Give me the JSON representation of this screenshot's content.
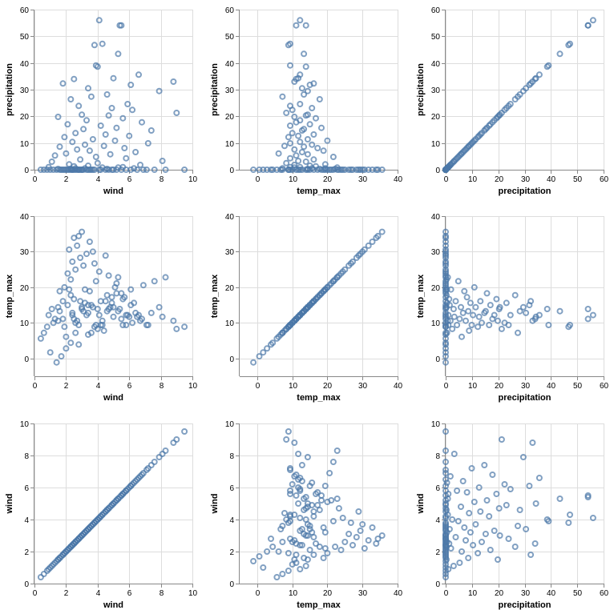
{
  "chart_data": {
    "type": "scatter",
    "layout": "scatter-matrix",
    "point_style": "hollow-circle",
    "point_color": "#4c78a8",
    "grid": true,
    "rows": [
      "precipitation",
      "temp_max",
      "wind"
    ],
    "columns": [
      "wind",
      "temp_max",
      "precipitation"
    ],
    "axes": {
      "wind": {
        "label": "wind",
        "domain": [
          0,
          10
        ],
        "ticks": [
          0,
          2,
          4,
          6,
          8,
          10
        ]
      },
      "temp_max": {
        "label": "temp_max",
        "domain": [
          -5,
          40
        ],
        "ticks": [
          0,
          10,
          20,
          30,
          40
        ]
      },
      "precipitation": {
        "label": "precipitation",
        "domain": [
          0,
          60
        ],
        "ticks": [
          0,
          10,
          20,
          30,
          40,
          50,
          60
        ]
      }
    },
    "points": [
      {
        "wind": 4.1,
        "temp_max": 12.2,
        "precipitation": 56.0
      },
      {
        "wind": 5.5,
        "temp_max": 11.1,
        "precipitation": 54.1
      },
      {
        "wind": 5.4,
        "temp_max": 13.9,
        "precipitation": 54.1
      },
      {
        "wind": 4.3,
        "temp_max": 9.4,
        "precipitation": 47.2
      },
      {
        "wind": 3.8,
        "temp_max": 8.9,
        "precipitation": 46.7
      },
      {
        "wind": 5.3,
        "temp_max": 13.3,
        "precipitation": 43.4
      },
      {
        "wind": 3.9,
        "temp_max": 9.4,
        "precipitation": 39.1
      },
      {
        "wind": 4.0,
        "temp_max": 13.9,
        "precipitation": 38.6
      },
      {
        "wind": 6.6,
        "temp_max": 12.2,
        "precipitation": 35.6
      },
      {
        "wind": 5.0,
        "temp_max": 11.7,
        "precipitation": 34.3
      },
      {
        "wind": 2.5,
        "temp_max": 11.1,
        "precipitation": 34.0
      },
      {
        "wind": 8.8,
        "temp_max": 10.6,
        "precipitation": 33.0
      },
      {
        "wind": 1.8,
        "temp_max": 16.1,
        "precipitation": 32.3
      },
      {
        "wind": 6.1,
        "temp_max": 15.0,
        "precipitation": 31.8
      },
      {
        "wind": 3.4,
        "temp_max": 12.8,
        "precipitation": 30.5
      },
      {
        "wind": 7.9,
        "temp_max": 14.4,
        "precipitation": 29.5
      },
      {
        "wind": 4.6,
        "temp_max": 13.3,
        "precipitation": 28.2
      },
      {
        "wind": 3.6,
        "temp_max": 7.2,
        "precipitation": 27.4
      },
      {
        "wind": 2.3,
        "temp_max": 17.8,
        "precipitation": 26.4
      },
      {
        "wind": 5.9,
        "temp_max": 12.2,
        "precipitation": 24.6
      },
      {
        "wind": 2.8,
        "temp_max": 9.4,
        "precipitation": 23.9
      },
      {
        "wind": 4.9,
        "temp_max": 15.6,
        "precipitation": 23.1
      },
      {
        "wind": 6.2,
        "temp_max": 10.0,
        "precipitation": 22.4
      },
      {
        "wind": 9.0,
        "temp_max": 8.3,
        "precipitation": 21.3
      },
      {
        "wind": 3.0,
        "temp_max": 14.4,
        "precipitation": 20.6
      },
      {
        "wind": 4.7,
        "temp_max": 13.9,
        "precipitation": 20.3
      },
      {
        "wind": 1.5,
        "temp_max": 10.6,
        "precipitation": 19.8
      },
      {
        "wind": 5.6,
        "temp_max": 16.7,
        "precipitation": 19.3
      },
      {
        "wind": 3.3,
        "temp_max": 12.2,
        "precipitation": 18.5
      },
      {
        "wind": 6.8,
        "temp_max": 11.1,
        "precipitation": 17.8
      },
      {
        "wind": 2.1,
        "temp_max": 15.0,
        "precipitation": 17.0
      },
      {
        "wind": 4.2,
        "temp_max": 9.4,
        "precipitation": 16.5
      },
      {
        "wind": 5.2,
        "temp_max": 18.3,
        "precipitation": 15.7
      },
      {
        "wind": 3.1,
        "temp_max": 13.3,
        "precipitation": 15.2
      },
      {
        "wind": 7.4,
        "temp_max": 12.8,
        "precipitation": 14.7
      },
      {
        "wind": 2.6,
        "temp_max": 10.0,
        "precipitation": 13.7
      },
      {
        "wind": 4.5,
        "temp_max": 16.1,
        "precipitation": 13.2
      },
      {
        "wind": 6.0,
        "temp_max": 11.7,
        "precipitation": 12.7
      },
      {
        "wind": 1.9,
        "temp_max": 8.9,
        "precipitation": 12.2
      },
      {
        "wind": 3.7,
        "temp_max": 14.4,
        "precipitation": 11.4
      },
      {
        "wind": 5.1,
        "temp_max": 20.0,
        "precipitation": 10.9
      },
      {
        "wind": 2.4,
        "temp_max": 12.2,
        "precipitation": 10.4
      },
      {
        "wind": 7.2,
        "temp_max": 9.4,
        "precipitation": 9.9
      },
      {
        "wind": 3.2,
        "temp_max": 15.6,
        "precipitation": 9.4
      },
      {
        "wind": 4.4,
        "temp_max": 7.8,
        "precipitation": 8.9
      },
      {
        "wind": 1.6,
        "temp_max": 13.3,
        "precipitation": 8.6
      },
      {
        "wind": 5.7,
        "temp_max": 17.2,
        "precipitation": 8.1
      },
      {
        "wind": 2.7,
        "temp_max": 10.6,
        "precipitation": 7.6
      },
      {
        "wind": 3.5,
        "temp_max": 18.9,
        "precipitation": 7.1
      },
      {
        "wind": 6.4,
        "temp_max": 12.8,
        "precipitation": 6.6
      },
      {
        "wind": 2.0,
        "temp_max": 6.1,
        "precipitation": 6.1
      },
      {
        "wind": 4.8,
        "temp_max": 14.4,
        "precipitation": 5.8
      },
      {
        "wind": 1.3,
        "temp_max": 11.1,
        "precipitation": 5.3
      },
      {
        "wind": 3.9,
        "temp_max": 21.7,
        "precipitation": 4.8
      },
      {
        "wind": 5.8,
        "temp_max": 9.4,
        "precipitation": 4.3
      },
      {
        "wind": 2.9,
        "temp_max": 16.1,
        "precipitation": 3.8
      },
      {
        "wind": 8.1,
        "temp_max": 11.7,
        "precipitation": 3.3
      },
      {
        "wind": 1.1,
        "temp_max": 13.9,
        "precipitation": 3.0
      },
      {
        "wind": 4.0,
        "temp_max": 8.3,
        "precipitation": 2.5
      },
      {
        "wind": 2.2,
        "temp_max": 19.4,
        "precipitation": 2.0
      },
      {
        "wind": 6.7,
        "temp_max": 10.6,
        "precipitation": 1.8
      },
      {
        "wind": 3.4,
        "temp_max": 15.0,
        "precipitation": 1.5
      },
      {
        "wind": 0.9,
        "temp_max": 12.2,
        "precipitation": 1.0
      },
      {
        "wind": 5.3,
        "temp_max": 22.8,
        "precipitation": 0.8
      },
      {
        "wind": 2.6,
        "temp_max": 7.2,
        "precipitation": 0.5
      },
      {
        "wind": 4.6,
        "temp_max": 17.8,
        "precipitation": 0.3
      },
      {
        "wind": 1.4,
        "temp_max": -1.1,
        "precipitation": 0.0
      },
      {
        "wind": 1.7,
        "temp_max": 0.6,
        "precipitation": 0.0
      },
      {
        "wind": 2.0,
        "temp_max": 2.8,
        "precipitation": 0.0
      },
      {
        "wind": 2.3,
        "temp_max": 4.4,
        "precipitation": 0.0
      },
      {
        "wind": 0.4,
        "temp_max": 5.6,
        "precipitation": 0.0
      },
      {
        "wind": 0.6,
        "temp_max": 7.2,
        "precipitation": 0.0
      },
      {
        "wind": 0.8,
        "temp_max": 8.9,
        "precipitation": 0.0
      },
      {
        "wind": 1.2,
        "temp_max": 10.0,
        "precipitation": 0.0
      },
      {
        "wind": 1.8,
        "temp_max": 11.1,
        "precipitation": 0.0
      },
      {
        "wind": 2.4,
        "temp_max": 12.8,
        "precipitation": 0.0
      },
      {
        "wind": 3.0,
        "temp_max": 13.9,
        "precipitation": 0.0
      },
      {
        "wind": 3.6,
        "temp_max": 15.0,
        "precipitation": 0.0
      },
      {
        "wind": 4.2,
        "temp_max": 16.1,
        "precipitation": 0.0
      },
      {
        "wind": 4.9,
        "temp_max": 17.2,
        "precipitation": 0.0
      },
      {
        "wind": 5.5,
        "temp_max": 18.3,
        "precipitation": 0.0
      },
      {
        "wind": 6.1,
        "temp_max": 19.4,
        "precipitation": 0.0
      },
      {
        "wind": 6.9,
        "temp_max": 20.6,
        "precipitation": 0.0
      },
      {
        "wind": 7.6,
        "temp_max": 21.7,
        "precipitation": 0.0
      },
      {
        "wind": 8.3,
        "temp_max": 22.8,
        "precipitation": 0.0
      },
      {
        "wind": 9.5,
        "temp_max": 8.9,
        "precipitation": 0.0
      },
      {
        "wind": 2.1,
        "temp_max": 23.9,
        "precipitation": 0.0
      },
      {
        "wind": 2.6,
        "temp_max": 25.0,
        "precipitation": 0.0
      },
      {
        "wind": 3.1,
        "temp_max": 26.1,
        "precipitation": 0.0
      },
      {
        "wind": 2.4,
        "temp_max": 27.2,
        "precipitation": 0.0
      },
      {
        "wind": 2.9,
        "temp_max": 28.3,
        "precipitation": 0.0
      },
      {
        "wind": 3.3,
        "temp_max": 29.4,
        "precipitation": 0.0
      },
      {
        "wind": 2.2,
        "temp_max": 30.6,
        "precipitation": 0.0
      },
      {
        "wind": 2.7,
        "temp_max": 31.7,
        "precipitation": 0.0
      },
      {
        "wind": 3.5,
        "temp_max": 32.8,
        "precipitation": 0.0
      },
      {
        "wind": 2.5,
        "temp_max": 33.9,
        "precipitation": 0.0
      },
      {
        "wind": 2.8,
        "temp_max": 34.4,
        "precipitation": 0.0
      },
      {
        "wind": 3.0,
        "temp_max": 35.6,
        "precipitation": 0.0
      },
      {
        "wind": 4.1,
        "temp_max": 24.4,
        "precipitation": 0.0
      },
      {
        "wind": 3.8,
        "temp_max": 26.7,
        "precipitation": 0.0
      },
      {
        "wind": 4.5,
        "temp_max": 28.9,
        "precipitation": 0.0
      },
      {
        "wind": 1.9,
        "temp_max": 20.0,
        "precipitation": 0.0
      },
      {
        "wind": 1.6,
        "temp_max": 18.9,
        "precipitation": 0.0
      },
      {
        "wind": 5.0,
        "temp_max": 14.4,
        "precipitation": 0.0
      },
      {
        "wind": 5.8,
        "temp_max": 12.2,
        "precipitation": 0.0
      },
      {
        "wind": 6.5,
        "temp_max": 11.7,
        "precipitation": 0.0
      },
      {
        "wind": 7.1,
        "temp_max": 9.4,
        "precipitation": 0.0
      },
      {
        "wind": 3.4,
        "temp_max": 6.7,
        "precipitation": 0.0
      },
      {
        "wind": 2.8,
        "temp_max": 3.9,
        "precipitation": 0.0
      },
      {
        "wind": 1.0,
        "temp_max": 1.7,
        "precipitation": 0.0
      },
      {
        "wind": 5.2,
        "temp_max": 21.1,
        "precipitation": 0.0
      },
      {
        "wind": 4.7,
        "temp_max": 23.3,
        "precipitation": 0.0
      },
      {
        "wind": 3.7,
        "temp_max": 30.0,
        "precipitation": 0.0
      },
      {
        "wind": 2.3,
        "temp_max": 22.2,
        "precipitation": 0.3
      },
      {
        "wind": 3.2,
        "temp_max": 19.4,
        "precipitation": 0.5
      },
      {
        "wind": 2.5,
        "temp_max": 16.7,
        "precipitation": 1.3
      },
      {
        "wind": 4.3,
        "temp_max": 10.6,
        "precipitation": 0.8
      },
      {
        "wind": 1.5,
        "temp_max": 14.4,
        "precipitation": 0.3
      },
      {
        "wind": 6.3,
        "temp_max": 15.6,
        "precipitation": 0.5
      },
      {
        "wind": 5.6,
        "temp_max": 9.4,
        "precipitation": 1.0
      }
    ]
  }
}
